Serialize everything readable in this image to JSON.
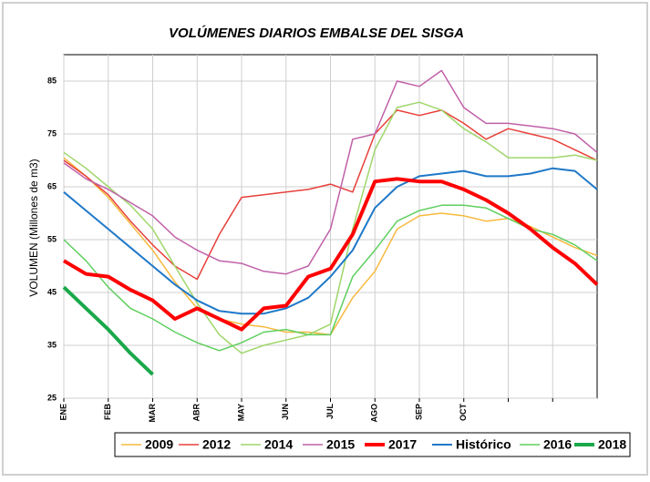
{
  "chart_data": {
    "type": "line",
    "title": "VOLÚMENES DIARIOS EMBALSE DEL SISGA",
    "y_label": "VOLUMEN  (Millones de m3)",
    "x": [
      0,
      0.5,
      1,
      1.5,
      2,
      2.5,
      3,
      3.5,
      4,
      4.5,
      5,
      5.5,
      6,
      6.5,
      7,
      7.5,
      8,
      8.5,
      9,
      9.5,
      10,
      10.5,
      11,
      11.5,
      12
    ],
    "xlim": [
      0,
      12
    ],
    "xticks": [
      {
        "value": 0,
        "label": "ENE"
      },
      {
        "value": 1,
        "label": "FEB"
      },
      {
        "value": 2,
        "label": "MAR"
      },
      {
        "value": 3,
        "label": "ABR"
      },
      {
        "value": 4,
        "label": "MAY"
      },
      {
        "value": 5,
        "label": "JUN"
      },
      {
        "value": 6,
        "label": "JUL"
      },
      {
        "value": 7,
        "label": "AGO"
      },
      {
        "value": 8,
        "label": "SEP"
      },
      {
        "value": 9,
        "label": "OCT"
      },
      {
        "value": 10,
        "label": null
      },
      {
        "value": 11,
        "label": null
      }
    ],
    "ylim": [
      25,
      90
    ],
    "yticks": [
      25,
      35,
      45,
      55,
      65,
      75,
      85
    ],
    "grid": true,
    "series": [
      {
        "name": "2009",
        "color": "#f7b93e",
        "line_width": 1.5,
        "values": [
          70.5,
          67,
          63,
          58,
          53,
          47,
          42,
          40,
          39,
          38.5,
          37.5,
          37.5,
          37,
          44,
          49,
          57,
          59.5,
          60,
          59.5,
          58.5,
          59,
          57.5,
          55.5,
          53.5,
          52
        ]
      },
      {
        "name": "2012",
        "color": "#e8403a",
        "line_width": 1.5,
        "values": [
          70,
          67,
          63.5,
          58.5,
          54,
          50,
          47.5,
          56,
          63,
          63.5,
          64,
          64.5,
          65.5,
          64,
          75,
          79.5,
          78.5,
          79.5,
          77,
          74,
          76,
          75,
          74,
          72,
          70
        ]
      },
      {
        "name": "2014",
        "color": "#9fd66a",
        "line_width": 1.5,
        "values": [
          71.5,
          68.5,
          65,
          61.5,
          57,
          50,
          43,
          37,
          33.5,
          35,
          36,
          37,
          39,
          57,
          72,
          80,
          81,
          79.5,
          76,
          73.5,
          70.5,
          70.5,
          70.5,
          71,
          70
        ]
      },
      {
        "name": "2015",
        "color": "#c060a8",
        "line_width": 1.5,
        "values": [
          69.5,
          66.5,
          64.5,
          62,
          59.5,
          55.5,
          53,
          51,
          50.5,
          49,
          48.5,
          50,
          57,
          74,
          75,
          85,
          84,
          87,
          80,
          77,
          77,
          76.5,
          76,
          75,
          71.5
        ]
      },
      {
        "name": "2017",
        "color": "#ff0000",
        "line_width": 4,
        "values": [
          51,
          48.5,
          48,
          45.5,
          43.5,
          40,
          42,
          40,
          38,
          42,
          42.5,
          48,
          49.5,
          56,
          66,
          66.5,
          66,
          66,
          64.5,
          62.5,
          60,
          57,
          53.5,
          50.5,
          46.5
        ]
      },
      {
        "name": "Histórico",
        "color": "#1f78c8",
        "line_width": 2,
        "values": [
          64,
          60.5,
          57,
          53.5,
          50,
          46.5,
          43.5,
          41.5,
          41,
          41,
          42,
          44,
          48,
          53,
          61,
          65,
          67,
          67.5,
          68,
          67,
          67,
          67.5,
          68.5,
          68,
          64.5
        ]
      },
      {
        "name": "2016",
        "color": "#5fcf5f",
        "line_width": 1.5,
        "values": [
          55,
          51,
          46,
          42,
          40,
          37.5,
          35.5,
          34,
          35.5,
          37.5,
          38,
          37,
          37,
          48,
          53,
          58.5,
          60.5,
          61.5,
          61.5,
          61,
          59,
          57,
          56,
          54,
          51
        ]
      },
      {
        "name": "2018",
        "color": "#1aa84a",
        "line_width": 4,
        "values": [
          46,
          42,
          38,
          33.5,
          29.5,
          null,
          null,
          null,
          null,
          null,
          null,
          null,
          null,
          null,
          null,
          null,
          null,
          null,
          null,
          null,
          null,
          null,
          null,
          null,
          null
        ]
      }
    ]
  }
}
